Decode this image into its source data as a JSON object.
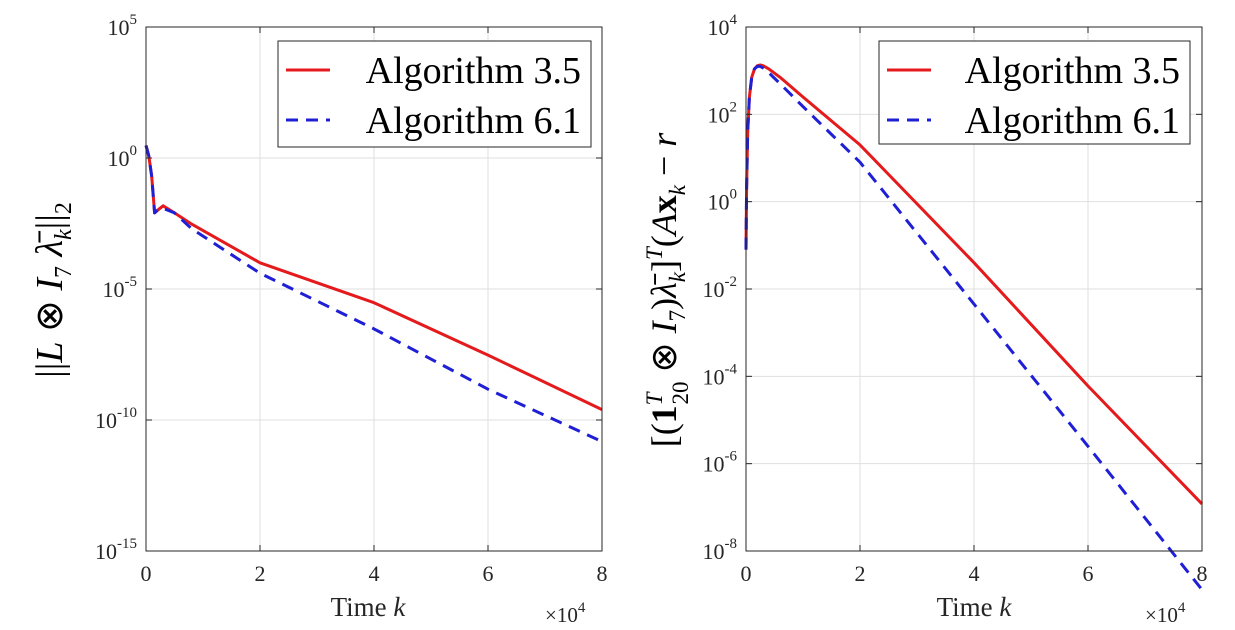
{
  "chart_data": [
    {
      "type": "line",
      "xlabel_text": "Time ",
      "xlabel_var": "k",
      "x_multiplier": {
        "base": "×10",
        "exp": "4"
      },
      "ylabel": "||L ⊗ I7 λ̄k||2",
      "yscale": "log",
      "xlim": [
        0,
        80000
      ],
      "ylim": [
        1e-15,
        100000.0
      ],
      "xticks": [
        0,
        20000,
        40000,
        60000,
        80000
      ],
      "xticklabels": [
        "0",
        "2",
        "4",
        "6",
        "8"
      ],
      "yticks": [
        1e-15,
        1e-10,
        1e-05,
        1.0,
        100000.0
      ],
      "yticklabels": [
        {
          "base": "10",
          "exp": "-15"
        },
        {
          "base": "10",
          "exp": "-10"
        },
        {
          "base": "10",
          "exp": "-5"
        },
        {
          "base": "10",
          "exp": "0"
        },
        {
          "base": "10",
          "exp": "5"
        }
      ],
      "grid": true,
      "legend_position": "top-right",
      "series": [
        {
          "name": "Algorithm 3.5",
          "color": "#e41a1c",
          "dash": "solid",
          "x": [
            0,
            500,
            1000,
            1500,
            2000,
            3000,
            5000,
            8000,
            20000,
            40000,
            60000,
            80000
          ],
          "y": [
            3,
            1.2,
            0.2,
            0.008,
            0.01,
            0.015,
            0.008,
            0.003,
            0.0001,
            3e-06,
            3e-08,
            2.5e-10
          ]
        },
        {
          "name": "Algorithm 6.1",
          "color": "#1f1fd6",
          "dash": "dashed",
          "x": [
            0,
            500,
            1000,
            1500,
            2000,
            3000,
            5000,
            8000,
            20000,
            40000,
            60000,
            80000
          ],
          "y": [
            3,
            1.2,
            0.2,
            0.008,
            0.01,
            0.012,
            0.008,
            0.002,
            4e-05,
            3e-07,
            1.5e-09,
            1.5e-11
          ]
        }
      ]
    },
    {
      "type": "line",
      "xlabel_text": "Time ",
      "xlabel_var": "k",
      "x_multiplier": {
        "base": "×10",
        "exp": "4"
      },
      "ylabel": "[(1T20 ⊗ I7)λ̄k]T (Axk − r)",
      "yscale": "log",
      "xlim": [
        0,
        80000
      ],
      "ylim": [
        1e-08,
        10000.0
      ],
      "xticks": [
        0,
        20000,
        40000,
        60000,
        80000
      ],
      "xticklabels": [
        "0",
        "2",
        "4",
        "6",
        "8"
      ],
      "yticks": [
        1e-08,
        1e-06,
        0.0001,
        0.01,
        1.0,
        100.0,
        10000.0
      ],
      "yticklabels": [
        {
          "base": "10",
          "exp": "-8"
        },
        {
          "base": "10",
          "exp": "-6"
        },
        {
          "base": "10",
          "exp": "-4"
        },
        {
          "base": "10",
          "exp": "-2"
        },
        {
          "base": "10",
          "exp": "0"
        },
        {
          "base": "10",
          "exp": "2"
        },
        {
          "base": "10",
          "exp": "4"
        }
      ],
      "grid": true,
      "legend_position": "top-right",
      "series": [
        {
          "name": "Algorithm 3.5",
          "color": "#e41a1c",
          "dash": "solid",
          "x": [
            0,
            100,
            300,
            600,
            1000,
            1500,
            2000,
            2500,
            3000,
            4000,
            6000,
            10000,
            20000,
            40000,
            60000,
            80000
          ],
          "y": [
            0.08,
            2,
            40,
            250,
            700,
            1100,
            1300,
            1350,
            1300,
            1100,
            700,
            250,
            20,
            0.04,
            6e-05,
            1.2e-07
          ]
        },
        {
          "name": "Algorithm 6.1",
          "color": "#1f1fd6",
          "dash": "dashed",
          "x": [
            0,
            100,
            300,
            600,
            1000,
            1500,
            2000,
            2500,
            3000,
            4000,
            6000,
            10000,
            20000,
            40000,
            60000,
            80000
          ],
          "y": [
            0.08,
            2,
            40,
            250,
            700,
            1100,
            1250,
            1250,
            1150,
            900,
            500,
            150,
            8,
            0.0045,
            2.5e-06,
            1.3e-09
          ]
        }
      ]
    }
  ]
}
